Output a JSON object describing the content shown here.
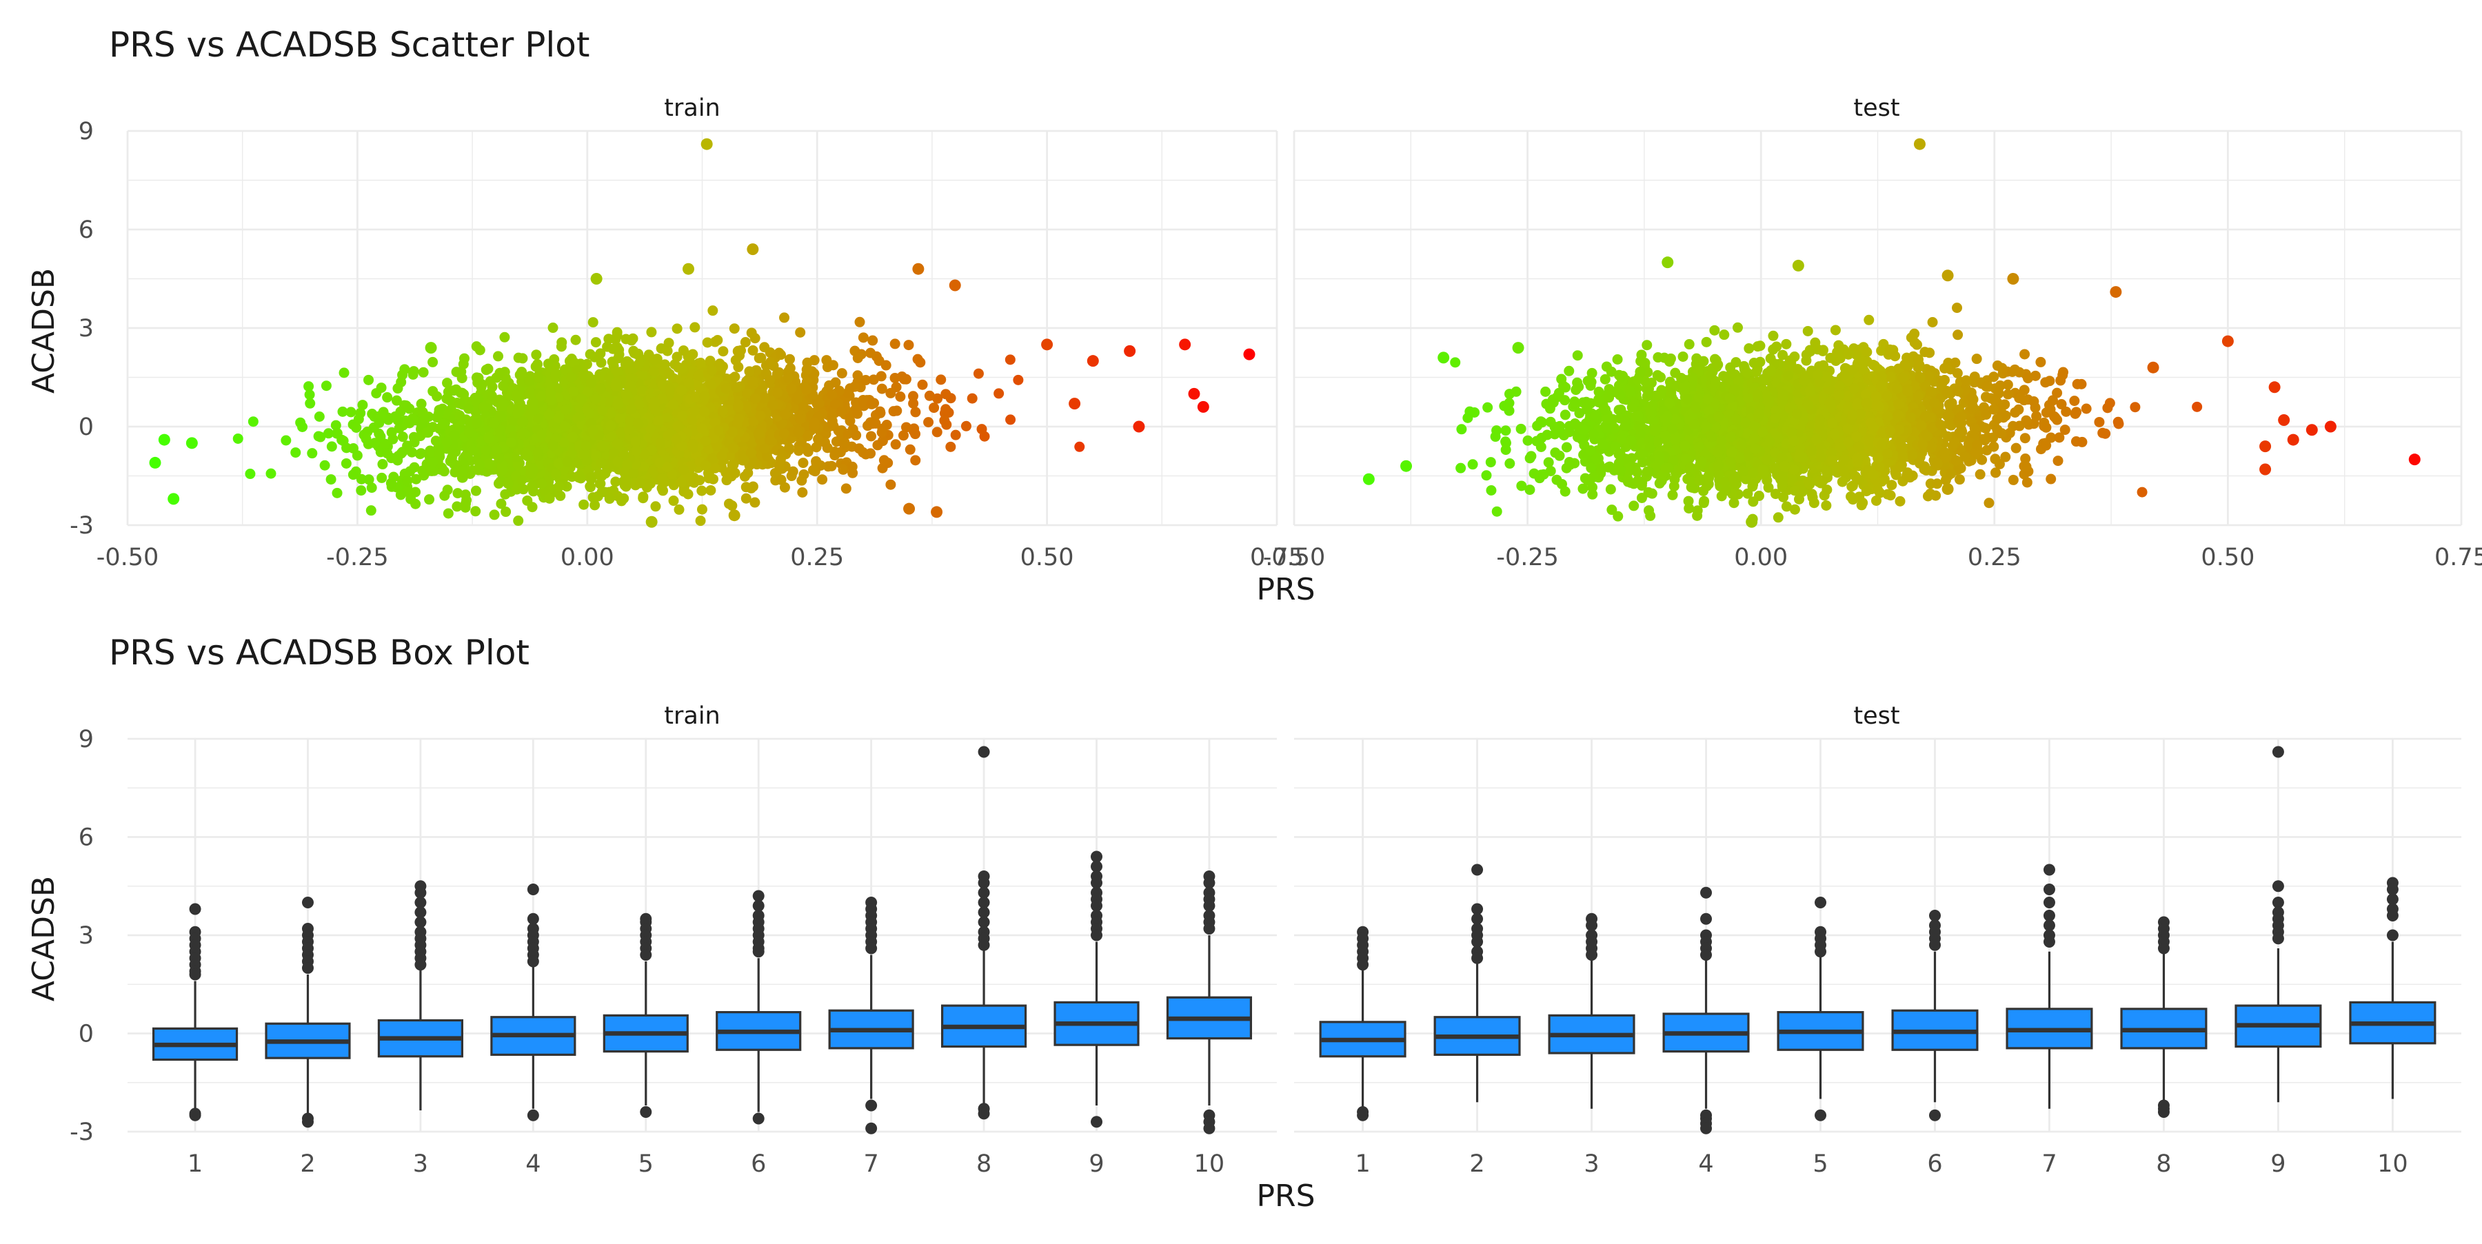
{
  "chart_data": [
    {
      "type": "scatter",
      "title": "PRS vs ACADSB Scatter Plot",
      "xlabel": "PRS",
      "ylabel": "ACADSB",
      "xlim": [
        -0.5,
        0.75
      ],
      "ylim": [
        -3,
        9
      ],
      "x_ticks": [
        -0.5,
        -0.25,
        0.0,
        0.25,
        0.5,
        0.75
      ],
      "x_tick_labels": [
        "-0.50",
        "-0.25",
        "0.00",
        "0.25",
        "0.50",
        "0.75"
      ],
      "y_ticks": [
        -3,
        0,
        3,
        6,
        9
      ],
      "y_tick_labels": [
        "-3",
        "0",
        "3",
        "6",
        "9"
      ],
      "grid": true,
      "legend": "none",
      "color_scale": {
        "low": "#44ff00",
        "mid": "#b8b800",
        "high": "#ff0000",
        "mapped_to": "PRS"
      },
      "cloud_points_per_panel": 3200,
      "panels": [
        {
          "name": "train",
          "cloud": {
            "x_mean": 0.05,
            "x_sd": 0.13,
            "y_mean": 0.1,
            "y_sd": 1.0,
            "slope": 1.3
          },
          "notable_points": [
            {
              "x": 0.13,
              "y": 8.6
            },
            {
              "x": 0.72,
              "y": 2.2
            },
            {
              "x": 0.67,
              "y": 0.6
            },
            {
              "x": 0.65,
              "y": 2.5
            },
            {
              "x": 0.66,
              "y": 1.0
            },
            {
              "x": 0.6,
              "y": 0.0
            },
            {
              "x": 0.59,
              "y": 2.3
            },
            {
              "x": 0.55,
              "y": 2.0
            },
            {
              "x": 0.53,
              "y": 0.7
            },
            {
              "x": 0.5,
              "y": 2.5
            },
            {
              "x": 0.18,
              "y": 5.4
            },
            {
              "x": 0.36,
              "y": 4.8
            },
            {
              "x": 0.11,
              "y": 4.8
            },
            {
              "x": -0.46,
              "y": -0.4
            },
            {
              "x": -0.45,
              "y": -2.2
            },
            {
              "x": -0.47,
              "y": -1.1
            },
            {
              "x": -0.43,
              "y": -0.5
            },
            {
              "x": 0.07,
              "y": -2.9
            },
            {
              "x": 0.38,
              "y": -2.6
            },
            {
              "x": 0.35,
              "y": -2.5
            },
            {
              "x": 0.16,
              "y": -2.7
            },
            {
              "x": -0.17,
              "y": 2.4
            },
            {
              "x": 0.4,
              "y": 4.3
            },
            {
              "x": 0.01,
              "y": 4.5
            }
          ]
        },
        {
          "name": "test",
          "cloud": {
            "x_mean": 0.03,
            "x_sd": 0.12,
            "y_mean": 0.05,
            "y_sd": 0.95,
            "slope": 1.2
          },
          "notable_points": [
            {
              "x": 0.17,
              "y": 8.6
            },
            {
              "x": 0.7,
              "y": -1.0
            },
            {
              "x": 0.61,
              "y": 0.0
            },
            {
              "x": 0.59,
              "y": -0.1
            },
            {
              "x": 0.57,
              "y": -0.4
            },
            {
              "x": 0.56,
              "y": 0.2
            },
            {
              "x": 0.54,
              "y": -0.6
            },
            {
              "x": 0.54,
              "y": -1.3
            },
            {
              "x": 0.55,
              "y": 1.2
            },
            {
              "x": 0.5,
              "y": 2.6
            },
            {
              "x": -0.42,
              "y": -1.6
            },
            {
              "x": -0.38,
              "y": -1.2
            },
            {
              "x": -0.34,
              "y": 2.1
            },
            {
              "x": -0.26,
              "y": 2.4
            },
            {
              "x": -0.1,
              "y": 5.0
            },
            {
              "x": 0.04,
              "y": 4.9
            },
            {
              "x": 0.27,
              "y": 4.5
            },
            {
              "x": 0.2,
              "y": -1.9
            },
            {
              "x": -0.01,
              "y": -2.9
            },
            {
              "x": 0.42,
              "y": 1.8
            },
            {
              "x": 0.38,
              "y": 4.1
            },
            {
              "x": 0.2,
              "y": 4.6
            }
          ]
        }
      ]
    },
    {
      "type": "box",
      "title": "PRS vs ACADSB Box Plot",
      "xlabel": "PRS",
      "ylabel": "ACADSB",
      "categories": [
        "1",
        "2",
        "3",
        "4",
        "5",
        "6",
        "7",
        "8",
        "9",
        "10"
      ],
      "ylim": [
        -3,
        9
      ],
      "y_ticks": [
        -3,
        0,
        3,
        6,
        9
      ],
      "y_tick_labels": [
        "-3",
        "0",
        "3",
        "6",
        "9"
      ],
      "fill": "#1e90ff",
      "grid": true,
      "legend": "none",
      "panels": [
        {
          "name": "train",
          "boxes": [
            {
              "q1": -0.8,
              "median": -0.35,
              "q3": 0.15,
              "whisker_low": -2.4,
              "whisker_high": 1.6,
              "outliers": [
                3.8,
                3.1,
                2.9,
                2.7,
                2.5,
                2.3,
                2.1,
                1.9,
                1.8,
                -2.5,
                -2.45
              ]
            },
            {
              "q1": -0.75,
              "median": -0.25,
              "q3": 0.3,
              "whisker_low": -2.5,
              "whisker_high": 1.8,
              "outliers": [
                4.0,
                3.2,
                3.0,
                2.8,
                2.6,
                2.4,
                2.2,
                2.0,
                -2.6,
                -2.7
              ]
            },
            {
              "q1": -0.7,
              "median": -0.15,
              "q3": 0.4,
              "whisker_low": -2.35,
              "whisker_high": 2.0,
              "outliers": [
                4.5,
                4.3,
                4.0,
                3.7,
                3.4,
                3.1,
                2.9,
                2.7,
                2.5,
                2.3,
                2.1
              ]
            },
            {
              "q1": -0.65,
              "median": -0.05,
              "q3": 0.5,
              "whisker_low": -2.3,
              "whisker_high": 2.1,
              "outliers": [
                4.4,
                3.5,
                3.2,
                3.0,
                2.8,
                2.6,
                2.4,
                2.2,
                -2.5
              ]
            },
            {
              "q1": -0.55,
              "median": 0.0,
              "q3": 0.55,
              "whisker_low": -2.2,
              "whisker_high": 2.2,
              "outliers": [
                3.5,
                3.4,
                3.2,
                3.0,
                2.8,
                2.6,
                2.4,
                -2.4
              ]
            },
            {
              "q1": -0.5,
              "median": 0.05,
              "q3": 0.65,
              "whisker_low": -2.4,
              "whisker_high": 2.3,
              "outliers": [
                4.2,
                3.9,
                3.6,
                3.4,
                3.2,
                3.0,
                2.8,
                2.6,
                2.5,
                -2.6
              ]
            },
            {
              "q1": -0.45,
              "median": 0.1,
              "q3": 0.7,
              "whisker_low": -2.0,
              "whisker_high": 2.4,
              "outliers": [
                4.0,
                3.8,
                3.6,
                3.4,
                3.2,
                3.0,
                2.8,
                2.6,
                -2.2,
                -2.9
              ]
            },
            {
              "q1": -0.4,
              "median": 0.2,
              "q3": 0.85,
              "whisker_low": -2.2,
              "whisker_high": 2.6,
              "outliers": [
                8.6,
                4.8,
                4.6,
                4.3,
                4.0,
                3.7,
                3.4,
                3.1,
                2.9,
                2.7,
                -2.3,
                -2.45
              ]
            },
            {
              "q1": -0.35,
              "median": 0.3,
              "q3": 0.95,
              "whisker_low": -2.2,
              "whisker_high": 2.8,
              "outliers": [
                5.4,
                5.1,
                4.8,
                4.6,
                4.3,
                4.1,
                3.9,
                3.6,
                3.4,
                3.2,
                3.0,
                -2.7
              ]
            },
            {
              "q1": -0.15,
              "median": 0.45,
              "q3": 1.1,
              "whisker_low": -2.2,
              "whisker_high": 3.0,
              "outliers": [
                4.8,
                4.6,
                4.3,
                4.1,
                3.9,
                3.6,
                3.4,
                3.2,
                -2.5,
                -2.7,
                -2.9
              ]
            }
          ]
        },
        {
          "name": "test",
          "boxes": [
            {
              "q1": -0.7,
              "median": -0.2,
              "q3": 0.35,
              "whisker_low": -2.3,
              "whisker_high": 2.0,
              "outliers": [
                3.1,
                2.9,
                2.7,
                2.5,
                2.3,
                2.1,
                -2.4,
                -2.5
              ]
            },
            {
              "q1": -0.65,
              "median": -0.1,
              "q3": 0.5,
              "whisker_low": -2.1,
              "whisker_high": 2.2,
              "outliers": [
                5.0,
                3.8,
                3.5,
                3.2,
                3.0,
                2.8,
                2.5,
                2.3
              ]
            },
            {
              "q1": -0.6,
              "median": -0.05,
              "q3": 0.55,
              "whisker_low": -2.3,
              "whisker_high": 2.3,
              "outliers": [
                3.5,
                3.3,
                3.0,
                2.8,
                2.6,
                2.4
              ]
            },
            {
              "q1": -0.55,
              "median": 0.0,
              "q3": 0.6,
              "whisker_low": -2.3,
              "whisker_high": 2.3,
              "outliers": [
                4.3,
                3.5,
                3.0,
                2.8,
                2.6,
                2.4,
                -2.5,
                -2.6,
                -2.75,
                -2.9
              ]
            },
            {
              "q1": -0.5,
              "median": 0.05,
              "q3": 0.65,
              "whisker_low": -2.0,
              "whisker_high": 2.4,
              "outliers": [
                4.0,
                3.1,
                2.9,
                2.7,
                2.5,
                -2.5
              ]
            },
            {
              "q1": -0.5,
              "median": 0.05,
              "q3": 0.7,
              "whisker_low": -2.1,
              "whisker_high": 2.5,
              "outliers": [
                3.6,
                3.3,
                3.1,
                2.9,
                2.7,
                -2.5
              ]
            },
            {
              "q1": -0.45,
              "median": 0.1,
              "q3": 0.75,
              "whisker_low": -2.3,
              "whisker_high": 2.5,
              "outliers": [
                5.0,
                4.4,
                4.0,
                3.6,
                3.3,
                3.0,
                2.8
              ]
            },
            {
              "q1": -0.45,
              "median": 0.1,
              "q3": 0.75,
              "whisker_low": -2.1,
              "whisker_high": 2.5,
              "outliers": [
                3.4,
                3.2,
                3.0,
                2.8,
                2.6,
                -2.2,
                -2.3,
                -2.4
              ]
            },
            {
              "q1": -0.4,
              "median": 0.25,
              "q3": 0.85,
              "whisker_low": -2.1,
              "whisker_high": 2.6,
              "outliers": [
                8.6,
                4.5,
                4.0,
                3.7,
                3.5,
                3.3,
                3.1,
                2.9
              ]
            },
            {
              "q1": -0.3,
              "median": 0.3,
              "q3": 0.95,
              "whisker_low": -2.0,
              "whisker_high": 2.8,
              "outliers": [
                4.6,
                4.4,
                4.1,
                3.8,
                3.6,
                3.0
              ]
            }
          ]
        }
      ]
    }
  ]
}
